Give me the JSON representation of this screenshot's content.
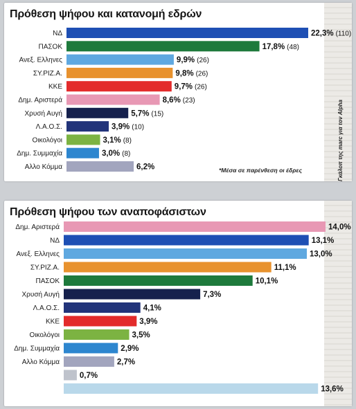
{
  "chart_data": [
    {
      "type": "bar",
      "orientation": "horizontal",
      "title": "Πρόθεση ψήφου και κατανομή εδρών",
      "categories": [
        "ΝΔ",
        "ΠΑΣΟΚ",
        "Ανεξ. Ελληνες",
        "ΣΥ.ΡΙΖ.Α.",
        "ΚΚΕ",
        "Δημ. Αριστερά",
        "Χρυσή Αυγή",
        "Λ.Α.Ο.Σ.",
        "Οικολόγοι",
        "Δημ. Συμμαχία",
        "Αλλο Κόμμα"
      ],
      "values": [
        22.3,
        17.8,
        9.9,
        9.8,
        9.7,
        8.6,
        5.7,
        3.9,
        3.1,
        3.0,
        6.2
      ],
      "value_labels": [
        "22,3%",
        "17,8%",
        "9,9%",
        "9,8%",
        "9,7%",
        "8,6%",
        "5,7%",
        "3,9%",
        "3,1%",
        "3,0%",
        "6,2%"
      ],
      "seat_labels": [
        "(110)",
        "(48)",
        "(26)",
        "(26)",
        "(26)",
        "(23)",
        "(15)",
        "(10)",
        "(8)",
        "(8)",
        ""
      ],
      "colors": [
        "#1e4fb4",
        "#1e7a3c",
        "#5fa8e0",
        "#e8922e",
        "#e32b2b",
        "#e898b4",
        "#16214d",
        "#22347a",
        "#7cb342",
        "#2d86cf",
        "#a2a5be"
      ],
      "note": "*Μέσα σε παρένθεση οι έδρες",
      "side_note": "Γκάλοπ της marc για τον Alpha"
    },
    {
      "type": "bar",
      "orientation": "horizontal",
      "title": "Πρόθεση ψήφου των αναποφάσιστων",
      "categories": [
        "Δημ. Αριστερά",
        "ΝΔ",
        "Ανεξ. Ελληνες",
        "ΣΥ.ΡΙΖ.Α.",
        "ΠΑΣΟΚ",
        "Χρυσή Αυγή",
        "Λ.Α.Ο.Σ.",
        "ΚΚΕ",
        "Οικολόγοι",
        "Δημ. Συμμαχία",
        "Αλλο Κόμμα",
        "",
        ""
      ],
      "values": [
        14.0,
        13.1,
        13.0,
        11.1,
        10.1,
        7.3,
        4.1,
        3.9,
        3.5,
        2.9,
        2.7,
        0.7,
        13.6
      ],
      "value_labels": [
        "14,0%",
        "13,1%",
        "13,0%",
        "11,1%",
        "10,1%",
        "7,3%",
        "4,1%",
        "3,9%",
        "3,5%",
        "2,9%",
        "2,7%",
        "0,7%",
        "13,6%"
      ],
      "colors": [
        "#e898b4",
        "#1e4fb4",
        "#5fa8e0",
        "#e8922e",
        "#1e7a3c",
        "#16214d",
        "#22347a",
        "#e32b2b",
        "#7cb342",
        "#2d86cf",
        "#a2a5be",
        "#bfc3cc",
        "#b9d8ea"
      ]
    }
  ]
}
